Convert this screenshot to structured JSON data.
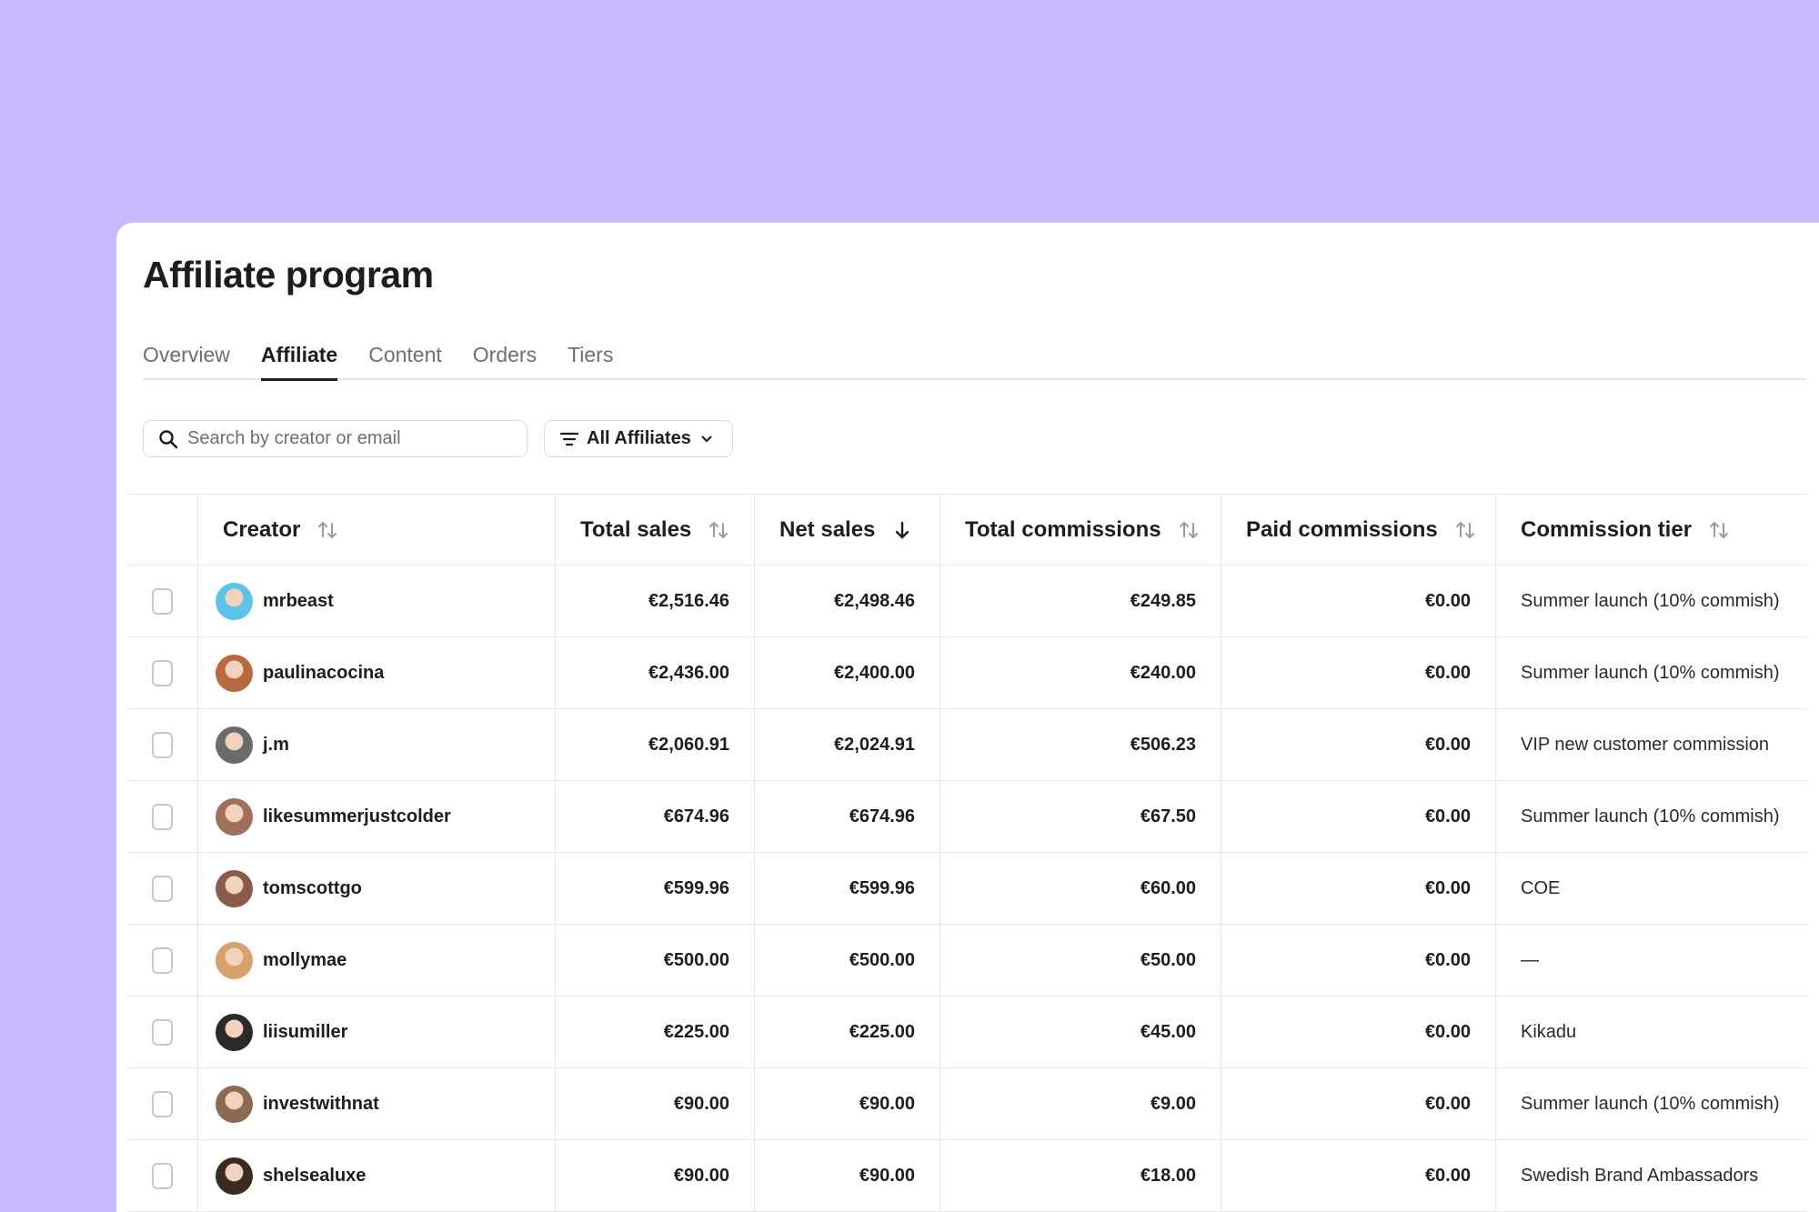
{
  "header": {
    "title": "Affiliate program"
  },
  "tabs": [
    "Overview",
    "Affiliate",
    "Content",
    "Orders",
    "Tiers"
  ],
  "toolbar": {
    "search_placeholder": "Search by creator or email",
    "filter": "All Affiliates"
  },
  "table": {
    "columns": [
      "Creator",
      "Total sales",
      "Net sales",
      "Total commissions",
      "Paid commissions",
      "Commission tier"
    ],
    "rows": [
      [
        "mrbeast",
        "€2,516.46",
        "€2,498.46",
        "€249.85",
        "€0.00",
        "Summer launch (10% commish)"
      ],
      [
        "paulinacocina",
        "€2,436.00",
        "€2,400.00",
        "€240.00",
        "€0.00",
        "Summer launch (10% commish)"
      ],
      [
        "j.m",
        "€2,060.91",
        "€2,024.91",
        "€506.23",
        "€0.00",
        "VIP new customer commission"
      ],
      [
        "likesummerjustcolder",
        "€674.96",
        "€674.96",
        "€67.50",
        "€0.00",
        "Summer launch (10% commish)"
      ],
      [
        "tomscottgo",
        "€599.96",
        "€599.96",
        "€60.00",
        "€0.00",
        "COE"
      ],
      [
        "mollymae",
        "€500.00",
        "€500.00",
        "€50.00",
        "€0.00",
        "—"
      ],
      [
        "liisumiller",
        "€225.00",
        "€225.00",
        "€45.00",
        "€0.00",
        "Kikadu"
      ],
      [
        "investwithnat",
        "€90.00",
        "€90.00",
        "€9.00",
        "€0.00",
        "Summer launch (10% commish)"
      ],
      [
        "shelsealuxe",
        "€90.00",
        "€90.00",
        "€18.00",
        "€0.00",
        "Swedish Brand Ambassadors"
      ]
    ]
  }
}
